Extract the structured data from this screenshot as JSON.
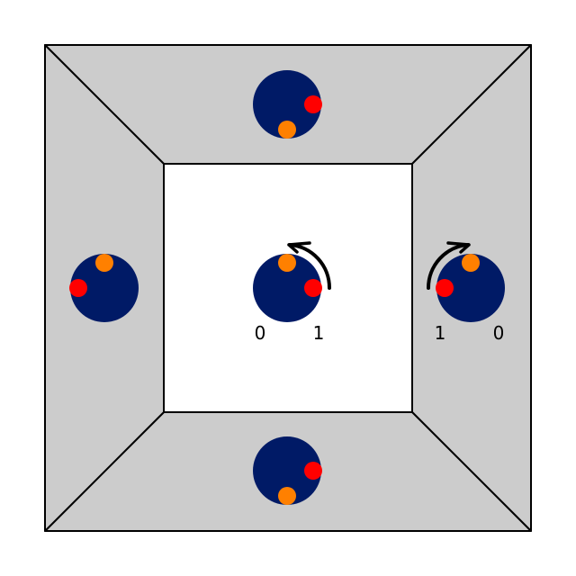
{
  "colors": {
    "background": "#ffffff",
    "side_panel": "#cccccc",
    "center_panel": "#ffffff",
    "edge": "#000000",
    "disc": "#001a66",
    "dot_red": "#ff0000",
    "dot_orange": "#ff8000"
  },
  "labels": {
    "center_left": "0",
    "center_right": "1",
    "right_left": "1",
    "right_right": "0"
  },
  "icons": {
    "center_arrow": "clockwise-rotation-arrow-icon",
    "right_arrow": "counterclockwise-rotation-arrow-icon"
  }
}
